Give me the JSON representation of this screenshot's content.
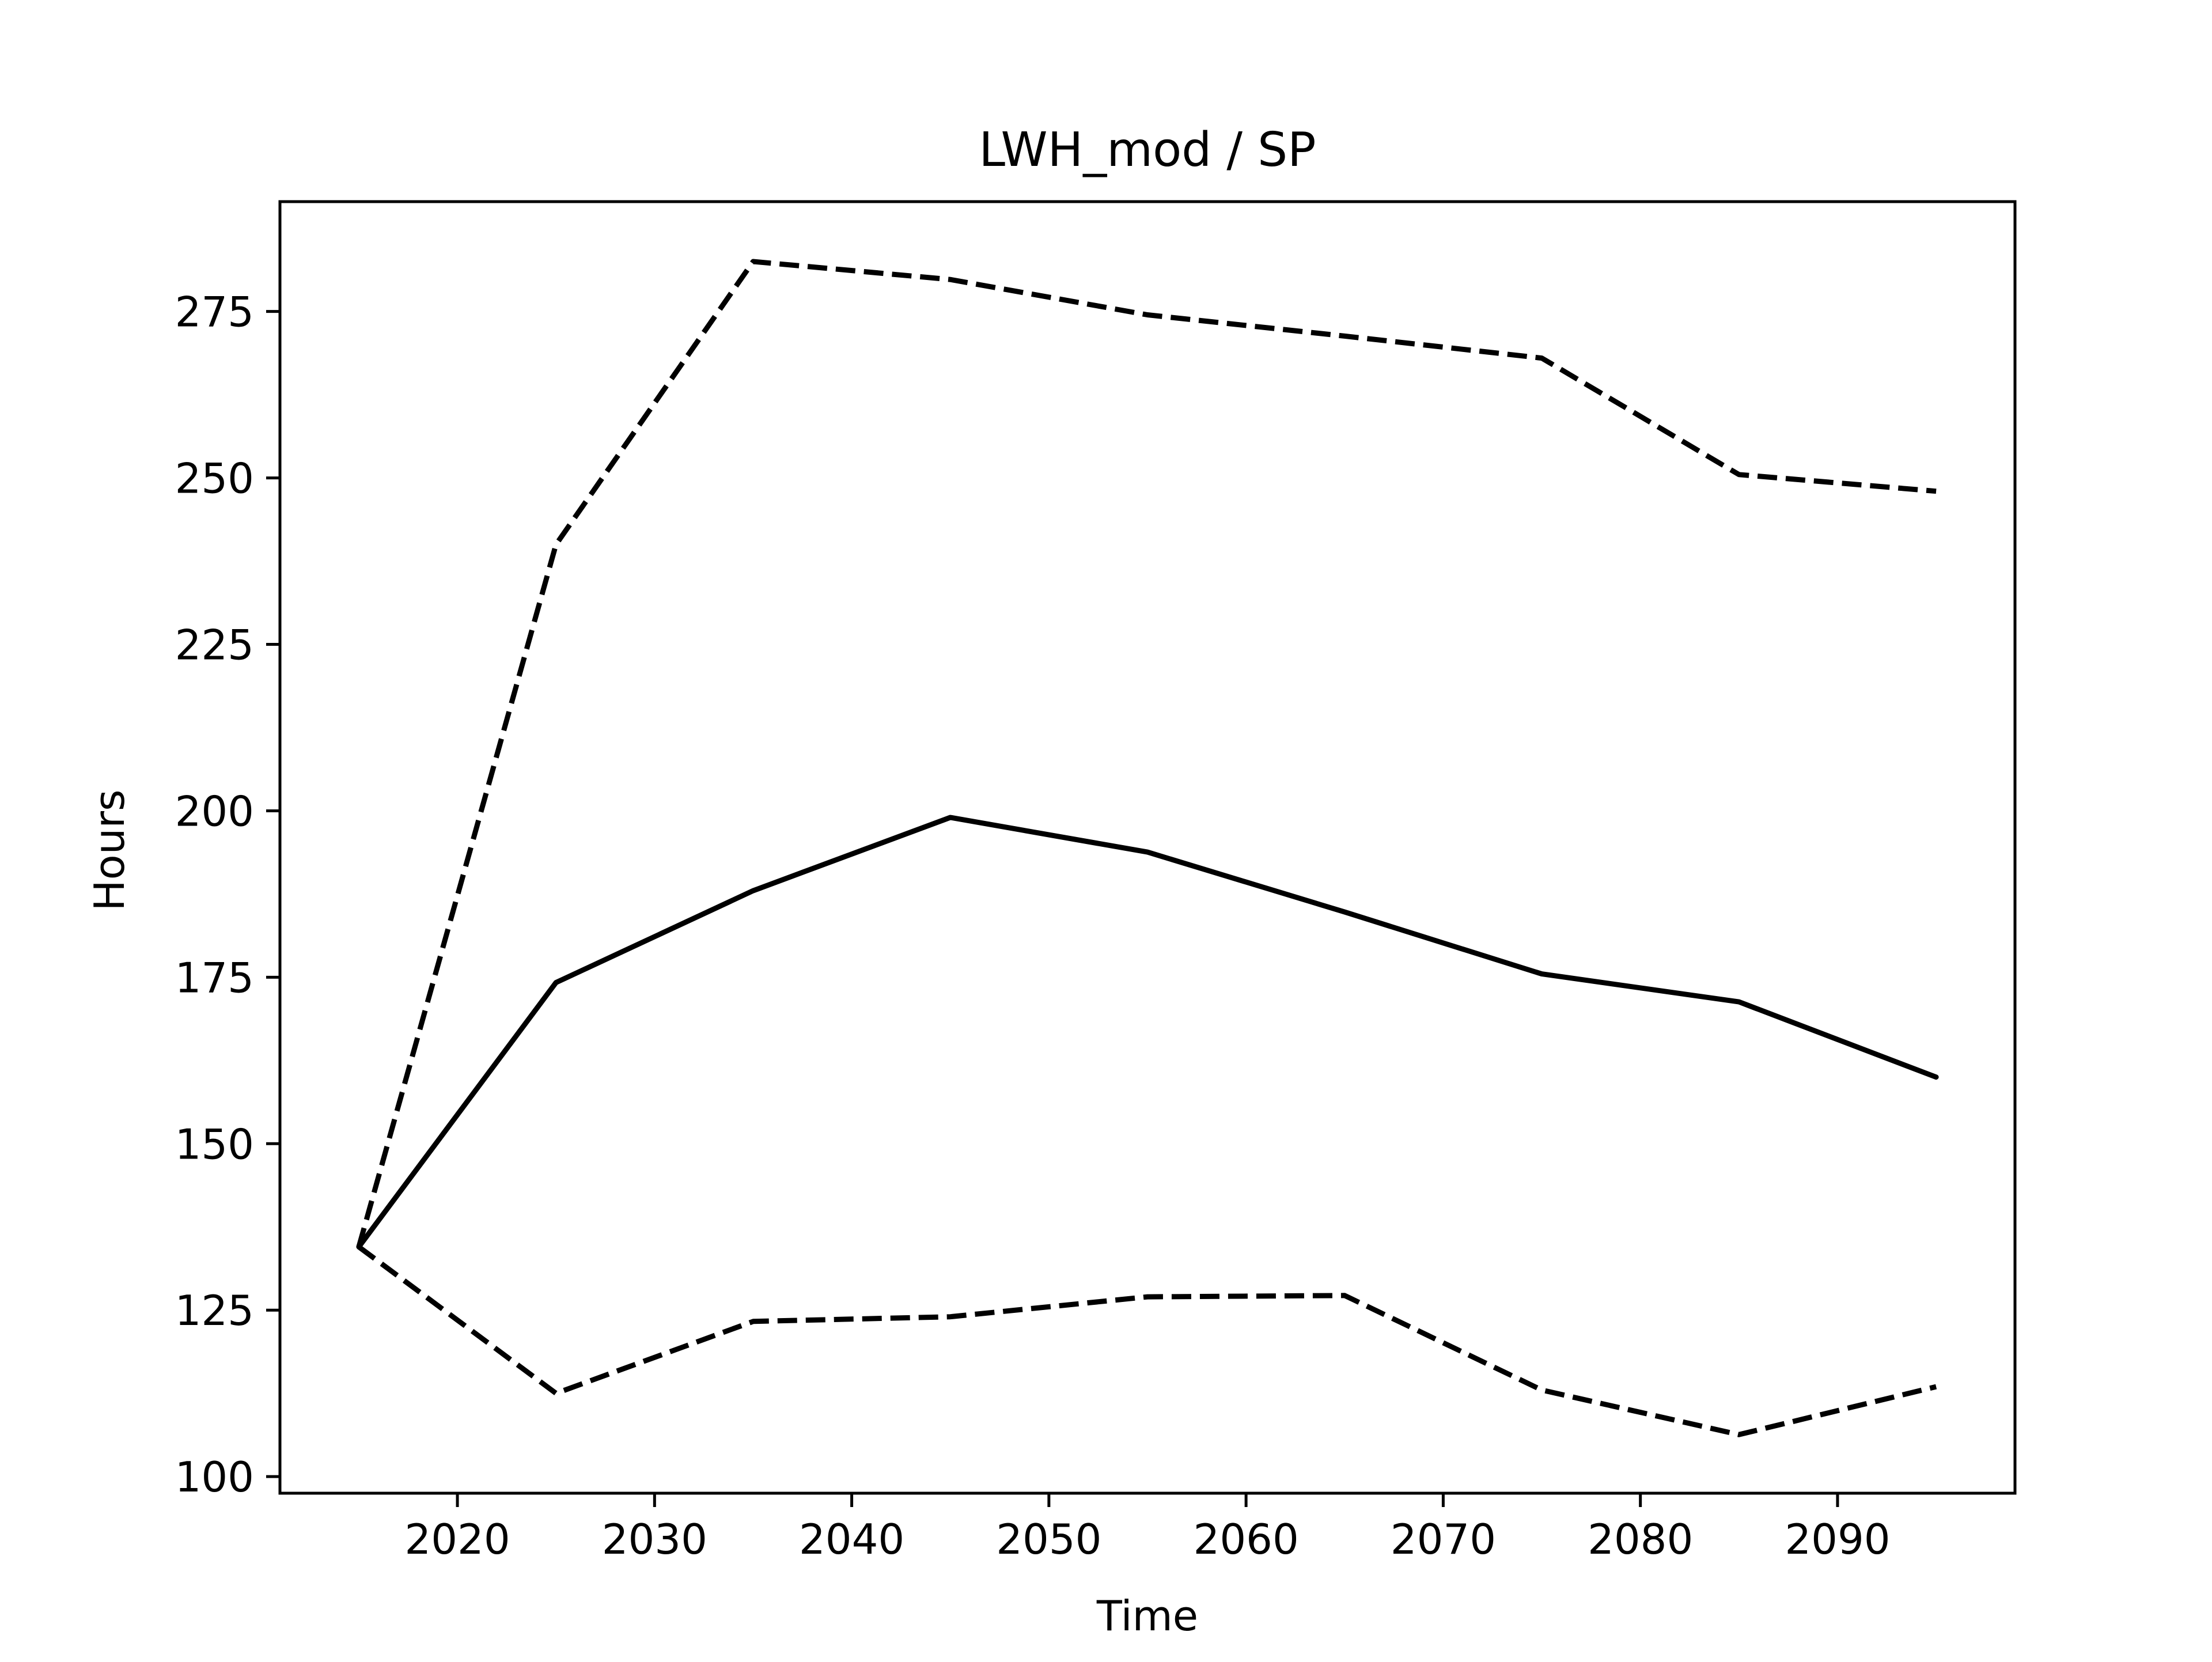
{
  "chart_data": {
    "type": "line",
    "title": "LWH_mod / SP",
    "xlabel": "Time",
    "ylabel": "Hours",
    "xlim": [
      2011,
      2099
    ],
    "ylim": [
      97.5,
      291.5
    ],
    "xticks": [
      2020,
      2030,
      2040,
      2050,
      2060,
      2070,
      2080,
      2090
    ],
    "yticks": [
      100,
      125,
      150,
      175,
      200,
      225,
      250,
      275
    ],
    "grid": false,
    "x": [
      2015,
      2025,
      2035,
      2045,
      2055,
      2065,
      2075,
      2085,
      2095
    ],
    "series": [
      {
        "style": "solid",
        "color": "#000000",
        "values": [
          134.5,
          174.2,
          188.0,
          199.0,
          193.8,
          184.8,
          175.5,
          171.3,
          160.0
        ]
      },
      {
        "style": "dashed",
        "color": "#000000",
        "values": [
          134.5,
          240.0,
          282.5,
          279.8,
          274.5,
          271.3,
          268.0,
          250.5,
          248.0
        ]
      },
      {
        "style": "dashed",
        "color": "#000000",
        "values": [
          134.5,
          112.5,
          123.3,
          124.0,
          127.0,
          127.2,
          113.0,
          106.3,
          113.5
        ]
      }
    ]
  }
}
